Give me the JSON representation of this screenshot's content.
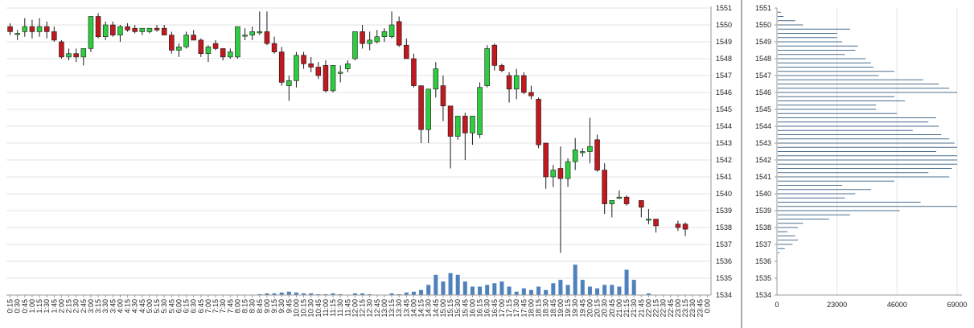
{
  "colors": {
    "background": "#ffffff",
    "grid": "#e3e3e3",
    "axis": "#9a9a9a",
    "up": "#2ecc40",
    "down": "#c0191f",
    "candle_border": "#1a1a1a",
    "volume": "#4f81bd",
    "profile": "#4a6f8f",
    "divider": "#555555"
  },
  "chart_data": [
    {
      "type": "candlestick",
      "title": "",
      "xlabel": "",
      "ylabel": "",
      "ylim": [
        1534,
        1551
      ],
      "yticks": [
        1534,
        1535,
        1536,
        1537,
        1538,
        1539,
        1540,
        1541,
        1542,
        1543,
        1544,
        1545,
        1546,
        1547,
        1548,
        1549,
        1550,
        1551
      ],
      "grid": true,
      "y_axis_side": "right",
      "x_tick_labels": [
        "0:15",
        "0:30",
        "0:45",
        "1:00",
        "1:15",
        "1:30",
        "1:45",
        "2:00",
        "2:15",
        "2:30",
        "2:45",
        "3:00",
        "3:15",
        "3:30",
        "3:45",
        "4:00",
        "4:15",
        "4:30",
        "4:45",
        "5:00",
        "5:15",
        "5:30",
        "5:45",
        "6:00",
        "6:15",
        "6:30",
        "6:45",
        "7:00",
        "7:15",
        "7:30",
        "7:45",
        "8:00",
        "8:15",
        "8:30",
        "8:45",
        "9:00",
        "9:15",
        "9:30",
        "9:45",
        "10:00",
        "10:15",
        "10:30",
        "10:45",
        "11:00",
        "11:15",
        "11:30",
        "11:45",
        "12:00",
        "12:15",
        "12:30",
        "12:45",
        "13:00",
        "13:15",
        "13:30",
        "13:45",
        "14:00",
        "14:15",
        "14:30",
        "14:45",
        "15:00",
        "15:15",
        "15:30",
        "15:45",
        "16:00",
        "16:15",
        "16:30",
        "16:45",
        "17:00",
        "17:15",
        "17:30",
        "17:45",
        "18:00",
        "18:15",
        "18:30",
        "18:45",
        "19:00",
        "19:15",
        "19:30",
        "19:45",
        "20:00",
        "20:15",
        "20:30",
        "20:45",
        "21:00",
        "21:15",
        "21:30",
        "21:45",
        "22:00",
        "22:15",
        "22:30",
        "22:45",
        "23:00",
        "23:15",
        "23:30",
        "23:45",
        "0:00"
      ],
      "candles": [
        {
          "o": 1549.9,
          "h": 1550.1,
          "l": 1549.4,
          "c": 1549.6
        },
        {
          "o": 1549.5,
          "h": 1549.7,
          "l": 1549.1,
          "c": 1549.5
        },
        {
          "o": 1549.6,
          "h": 1550.4,
          "l": 1549.3,
          "c": 1549.9
        },
        {
          "o": 1549.9,
          "h": 1550.3,
          "l": 1549.2,
          "c": 1549.6
        },
        {
          "o": 1549.6,
          "h": 1550.4,
          "l": 1549.3,
          "c": 1549.9
        },
        {
          "o": 1549.9,
          "h": 1550.2,
          "l": 1549.2,
          "c": 1549.6
        },
        {
          "o": 1549.6,
          "h": 1549.9,
          "l": 1549.0,
          "c": 1549.1
        },
        {
          "o": 1549.0,
          "h": 1549.1,
          "l": 1548.0,
          "c": 1548.1
        },
        {
          "o": 1548.1,
          "h": 1548.6,
          "l": 1547.9,
          "c": 1548.3
        },
        {
          "o": 1548.3,
          "h": 1548.6,
          "l": 1547.8,
          "c": 1548.1
        },
        {
          "o": 1548.1,
          "h": 1548.6,
          "l": 1547.6,
          "c": 1548.6
        },
        {
          "o": 1548.6,
          "h": 1550.5,
          "l": 1548.4,
          "c": 1550.5
        },
        {
          "o": 1550.5,
          "h": 1550.7,
          "l": 1549.2,
          "c": 1549.3
        },
        {
          "o": 1549.3,
          "h": 1550.2,
          "l": 1549.1,
          "c": 1550.0
        },
        {
          "o": 1550.0,
          "h": 1550.2,
          "l": 1549.3,
          "c": 1549.4
        },
        {
          "o": 1549.4,
          "h": 1550.0,
          "l": 1549.0,
          "c": 1549.9
        },
        {
          "o": 1549.9,
          "h": 1550.1,
          "l": 1549.6,
          "c": 1549.7
        },
        {
          "o": 1549.8,
          "h": 1550.0,
          "l": 1549.5,
          "c": 1549.6
        },
        {
          "o": 1549.6,
          "h": 1549.8,
          "l": 1549.4,
          "c": 1549.8
        },
        {
          "o": 1549.6,
          "h": 1549.8,
          "l": 1549.5,
          "c": 1549.8
        },
        {
          "o": 1549.8,
          "h": 1550.0,
          "l": 1549.6,
          "c": 1549.7
        },
        {
          "o": 1549.8,
          "h": 1550.0,
          "l": 1549.5,
          "c": 1549.4
        },
        {
          "o": 1549.4,
          "h": 1549.6,
          "l": 1548.3,
          "c": 1548.5
        },
        {
          "o": 1548.5,
          "h": 1548.9,
          "l": 1548.1,
          "c": 1548.7
        },
        {
          "o": 1548.7,
          "h": 1549.6,
          "l": 1548.6,
          "c": 1549.4
        },
        {
          "o": 1549.4,
          "h": 1549.7,
          "l": 1549.1,
          "c": 1549.1
        },
        {
          "o": 1549.1,
          "h": 1549.2,
          "l": 1548.1,
          "c": 1548.3
        },
        {
          "o": 1548.3,
          "h": 1548.8,
          "l": 1547.8,
          "c": 1548.7
        },
        {
          "o": 1548.9,
          "h": 1549.1,
          "l": 1548.5,
          "c": 1548.6
        },
        {
          "o": 1548.6,
          "h": 1548.6,
          "l": 1547.9,
          "c": 1548.1
        },
        {
          "o": 1548.1,
          "h": 1548.6,
          "l": 1548.0,
          "c": 1548.4
        },
        {
          "o": 1548.1,
          "h": 1549.9,
          "l": 1548.0,
          "c": 1549.9
        },
        {
          "o": 1549.4,
          "h": 1549.8,
          "l": 1549.1,
          "c": 1549.4
        },
        {
          "o": 1549.4,
          "h": 1549.9,
          "l": 1549.1,
          "c": 1549.6
        },
        {
          "o": 1549.6,
          "h": 1550.8,
          "l": 1549.4,
          "c": 1549.6
        },
        {
          "o": 1549.6,
          "h": 1550.8,
          "l": 1548.8,
          "c": 1548.9
        },
        {
          "o": 1548.9,
          "h": 1549.3,
          "l": 1548.3,
          "c": 1548.4
        },
        {
          "o": 1548.4,
          "h": 1548.7,
          "l": 1546.4,
          "c": 1546.6
        },
        {
          "o": 1546.4,
          "h": 1547.0,
          "l": 1545.5,
          "c": 1546.7
        },
        {
          "o": 1546.7,
          "h": 1548.4,
          "l": 1546.3,
          "c": 1548.2
        },
        {
          "o": 1548.2,
          "h": 1548.4,
          "l": 1547.4,
          "c": 1547.7
        },
        {
          "o": 1547.7,
          "h": 1548.1,
          "l": 1547.2,
          "c": 1547.5
        },
        {
          "o": 1547.5,
          "h": 1547.8,
          "l": 1546.8,
          "c": 1547.0
        },
        {
          "o": 1547.6,
          "h": 1547.9,
          "l": 1546.0,
          "c": 1546.1
        },
        {
          "o": 1546.1,
          "h": 1547.6,
          "l": 1546.0,
          "c": 1547.6
        },
        {
          "o": 1547.2,
          "h": 1547.6,
          "l": 1546.6,
          "c": 1547.2
        },
        {
          "o": 1547.4,
          "h": 1547.9,
          "l": 1547.2,
          "c": 1547.7
        },
        {
          "o": 1548.0,
          "h": 1549.6,
          "l": 1547.9,
          "c": 1549.6
        },
        {
          "o": 1549.6,
          "h": 1550.0,
          "l": 1548.6,
          "c": 1548.9
        },
        {
          "o": 1548.9,
          "h": 1549.6,
          "l": 1548.5,
          "c": 1549.1
        },
        {
          "o": 1549.0,
          "h": 1549.7,
          "l": 1548.9,
          "c": 1549.3
        },
        {
          "o": 1549.3,
          "h": 1549.8,
          "l": 1549.0,
          "c": 1549.6
        },
        {
          "o": 1549.3,
          "h": 1550.8,
          "l": 1549.2,
          "c": 1550.0
        },
        {
          "o": 1550.2,
          "h": 1550.5,
          "l": 1548.7,
          "c": 1548.8
        },
        {
          "o": 1548.8,
          "h": 1549.2,
          "l": 1548.0,
          "c": 1548.0
        },
        {
          "o": 1548.0,
          "h": 1548.3,
          "l": 1546.3,
          "c": 1546.4
        },
        {
          "o": 1546.4,
          "h": 1546.4,
          "l": 1543.0,
          "c": 1543.8
        },
        {
          "o": 1543.8,
          "h": 1546.2,
          "l": 1543.0,
          "c": 1546.2
        },
        {
          "o": 1546.2,
          "h": 1547.8,
          "l": 1545.7,
          "c": 1547.4
        },
        {
          "o": 1546.4,
          "h": 1547.0,
          "l": 1544.3,
          "c": 1545.2
        },
        {
          "o": 1545.2,
          "h": 1545.2,
          "l": 1541.5,
          "c": 1543.4
        },
        {
          "o": 1543.4,
          "h": 1544.6,
          "l": 1543.2,
          "c": 1544.6
        },
        {
          "o": 1544.6,
          "h": 1544.8,
          "l": 1542.0,
          "c": 1543.6
        },
        {
          "o": 1543.6,
          "h": 1544.6,
          "l": 1542.9,
          "c": 1544.6
        },
        {
          "o": 1543.5,
          "h": 1546.6,
          "l": 1543.3,
          "c": 1546.3
        },
        {
          "o": 1546.4,
          "h": 1548.8,
          "l": 1546.3,
          "c": 1548.6
        },
        {
          "o": 1548.8,
          "h": 1548.9,
          "l": 1547.3,
          "c": 1547.6
        },
        {
          "o": 1547.6,
          "h": 1547.7,
          "l": 1547.2,
          "c": 1547.3
        },
        {
          "o": 1547.0,
          "h": 1547.2,
          "l": 1545.4,
          "c": 1546.2
        },
        {
          "o": 1546.2,
          "h": 1547.4,
          "l": 1545.6,
          "c": 1547.0
        },
        {
          "o": 1547.0,
          "h": 1547.2,
          "l": 1545.9,
          "c": 1546.0
        },
        {
          "o": 1546.0,
          "h": 1546.4,
          "l": 1545.6,
          "c": 1545.8
        },
        {
          "o": 1545.6,
          "h": 1545.7,
          "l": 1542.7,
          "c": 1542.9
        },
        {
          "o": 1543.0,
          "h": 1543.0,
          "l": 1540.3,
          "c": 1541.0
        },
        {
          "o": 1541.0,
          "h": 1541.7,
          "l": 1540.4,
          "c": 1541.4
        },
        {
          "o": 1541.5,
          "h": 1542.8,
          "l": 1536.5,
          "c": 1540.9
        },
        {
          "o": 1540.9,
          "h": 1542.1,
          "l": 1540.4,
          "c": 1541.9
        },
        {
          "o": 1541.9,
          "h": 1543.3,
          "l": 1541.4,
          "c": 1542.6
        },
        {
          "o": 1542.5,
          "h": 1542.7,
          "l": 1542.2,
          "c": 1542.5
        },
        {
          "o": 1542.5,
          "h": 1544.5,
          "l": 1541.8,
          "c": 1542.8
        },
        {
          "o": 1543.2,
          "h": 1543.5,
          "l": 1541.3,
          "c": 1541.4
        },
        {
          "o": 1541.4,
          "h": 1541.8,
          "l": 1538.8,
          "c": 1539.4
        },
        {
          "o": 1539.4,
          "h": 1539.6,
          "l": 1538.6,
          "c": 1539.6
        },
        {
          "o": 1539.8,
          "h": 1540.2,
          "l": 1539.7,
          "c": 1539.8
        },
        {
          "o": 1539.8,
          "h": 1539.9,
          "l": 1539.3,
          "c": 1539.4
        },
        {
          "o": 1539.6,
          "h": 1539.6,
          "l": 1538.6,
          "c": 1539.2
        },
        {
          "o": 1538.5,
          "h": 1539.1,
          "l": 1538.2,
          "c": 1538.5
        },
        {
          "o": 1538.5,
          "h": 1538.5,
          "l": 1537.7,
          "c": 1538.1
        },
        {
          "o": 1538.2,
          "h": 1538.4,
          "l": 1537.8,
          "c": 1538.0
        },
        {
          "o": 1538.2,
          "h": 1538.3,
          "l": 1537.5,
          "c": 1537.9
        }
      ],
      "candle_columns": [
        0,
        1,
        2,
        3,
        4,
        5,
        6,
        7,
        8,
        9,
        10,
        11,
        12,
        13,
        14,
        15,
        16,
        17,
        18,
        19,
        20,
        21,
        22,
        23,
        24,
        25,
        26,
        27,
        28,
        29,
        30,
        31,
        32,
        33,
        34,
        35,
        36,
        37,
        38,
        39,
        40,
        41,
        42,
        43,
        44,
        45,
        46,
        47,
        48,
        49,
        50,
        51,
        52,
        53,
        54,
        55,
        56,
        57,
        58,
        59,
        60,
        61,
        62,
        63,
        64,
        65,
        66,
        67,
        68,
        69,
        70,
        71,
        72,
        73,
        74,
        75,
        76,
        77,
        78,
        79,
        80,
        81,
        82,
        83,
        84,
        86,
        87,
        88,
        91,
        92,
        93
      ],
      "volume_bars": [
        0,
        0,
        0,
        0,
        0,
        0,
        0,
        0,
        0,
        0,
        0,
        0,
        0,
        0,
        0,
        0,
        0,
        0,
        0,
        0,
        0,
        0,
        0,
        0,
        0,
        0,
        0,
        0,
        0,
        0,
        0,
        0,
        0,
        0,
        0.05,
        0.1,
        0.1,
        0.15,
        0.2,
        0.15,
        0.1,
        0.1,
        0.05,
        0.05,
        0.1,
        0.05,
        0,
        0.1,
        0.1,
        0.05,
        0,
        0,
        0.1,
        0.05,
        0.15,
        0.2,
        0.3,
        0.6,
        1.2,
        0.8,
        1.3,
        1.2,
        0.8,
        0.5,
        0.5,
        0.6,
        0.7,
        0.8,
        0.5,
        0.2,
        0.4,
        0.3,
        0.5,
        0.3,
        0.7,
        0.9,
        0.6,
        1.8,
        0.9,
        0.5,
        0.4,
        0.6,
        0.6,
        0.5,
        1.5,
        0.9,
        0,
        0.1,
        0,
        0,
        0,
        0,
        0,
        0,
        0,
        0
      ]
    },
    {
      "type": "bar",
      "orientation": "horizontal",
      "title": "",
      "xlabel": "",
      "ylabel": "",
      "xlim": [
        0,
        69000
      ],
      "xticks": [
        0,
        23000,
        46000,
        69000
      ],
      "x_tick_labels": [
        "0",
        "23000",
        "46000",
        "69000"
      ],
      "ylim": [
        1534,
        1551
      ],
      "yticks": [
        1534,
        1535,
        1536,
        1537,
        1538,
        1539,
        1540,
        1541,
        1542,
        1543,
        1544,
        1545,
        1546,
        1547,
        1548,
        1549,
        1550,
        1551
      ],
      "price_step": 0.25,
      "bars": [
        {
          "price": 1550.75,
          "volume": 1500
        },
        {
          "price": 1550.5,
          "volume": 2500
        },
        {
          "price": 1550.25,
          "volume": 7000
        },
        {
          "price": 1550.0,
          "volume": 10000
        },
        {
          "price": 1549.75,
          "volume": 28000
        },
        {
          "price": 1549.5,
          "volume": 23000
        },
        {
          "price": 1549.25,
          "volume": 23000
        },
        {
          "price": 1549.0,
          "volume": 25000
        },
        {
          "price": 1548.75,
          "volume": 31000
        },
        {
          "price": 1548.5,
          "volume": 30000
        },
        {
          "price": 1548.25,
          "volume": 26000
        },
        {
          "price": 1548.0,
          "volume": 34000
        },
        {
          "price": 1547.75,
          "volume": 36000
        },
        {
          "price": 1547.5,
          "volume": 37000
        },
        {
          "price": 1547.25,
          "volume": 45000
        },
        {
          "price": 1547.0,
          "volume": 39000
        },
        {
          "price": 1546.75,
          "volume": 56000
        },
        {
          "price": 1546.5,
          "volume": 62000
        },
        {
          "price": 1546.25,
          "volume": 66000
        },
        {
          "price": 1546.0,
          "volume": 77000
        },
        {
          "price": 1545.75,
          "volume": 45000
        },
        {
          "price": 1545.5,
          "volume": 49000
        },
        {
          "price": 1545.25,
          "volume": 38000
        },
        {
          "price": 1545.0,
          "volume": 38000
        },
        {
          "price": 1544.75,
          "volume": 46000
        },
        {
          "price": 1544.5,
          "volume": 61000
        },
        {
          "price": 1544.25,
          "volume": 58000
        },
        {
          "price": 1544.0,
          "volume": 62000
        },
        {
          "price": 1543.75,
          "volume": 52000
        },
        {
          "price": 1543.5,
          "volume": 63000
        },
        {
          "price": 1543.25,
          "volume": 66000
        },
        {
          "price": 1543.0,
          "volume": 68000
        },
        {
          "price": 1542.75,
          "volume": 71000
        },
        {
          "price": 1542.5,
          "volume": 61000
        },
        {
          "price": 1542.25,
          "volume": 70000
        },
        {
          "price": 1542.0,
          "volume": 84000
        },
        {
          "price": 1541.75,
          "volume": 80000
        },
        {
          "price": 1541.5,
          "volume": 67000
        },
        {
          "price": 1541.25,
          "volume": 58000
        },
        {
          "price": 1541.0,
          "volume": 66000
        },
        {
          "price": 1540.75,
          "volume": 45000
        },
        {
          "price": 1540.5,
          "volume": 25000
        },
        {
          "price": 1540.25,
          "volume": 36000
        },
        {
          "price": 1540.0,
          "volume": 30000
        },
        {
          "price": 1539.75,
          "volume": 26000
        },
        {
          "price": 1539.5,
          "volume": 55000
        },
        {
          "price": 1539.25,
          "volume": 71000
        },
        {
          "price": 1539.0,
          "volume": 47000
        },
        {
          "price": 1538.75,
          "volume": 28000
        },
        {
          "price": 1538.5,
          "volume": 20000
        },
        {
          "price": 1538.25,
          "volume": 10000
        },
        {
          "price": 1538.0,
          "volume": 8000
        },
        {
          "price": 1537.75,
          "volume": 4000
        },
        {
          "price": 1537.5,
          "volume": 7000
        },
        {
          "price": 1537.25,
          "volume": 8000
        },
        {
          "price": 1537.0,
          "volume": 6000
        },
        {
          "price": 1536.75,
          "volume": 3000
        },
        {
          "price": 1536.5,
          "volume": 1000
        }
      ]
    }
  ]
}
